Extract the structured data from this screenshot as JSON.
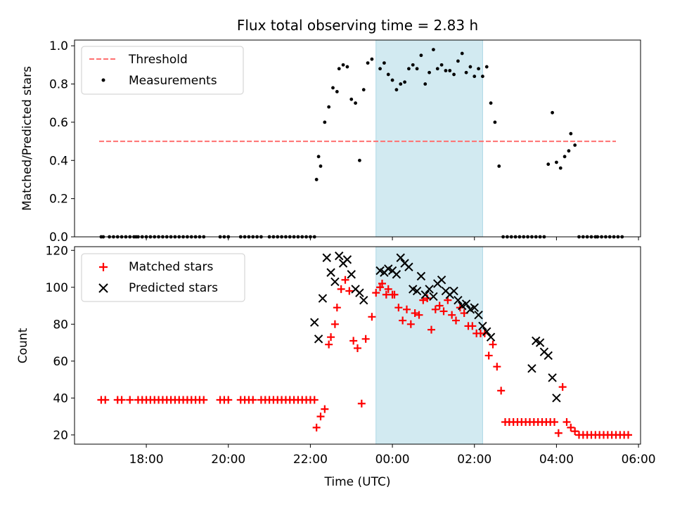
{
  "chart_data": [
    {
      "type": "scatter",
      "title": "Flux total observing time = 2.83 h",
      "xlabel": "",
      "ylabel": "Matched/Predicted stars",
      "x_unit": "hours (UTC, continuing past midnight)",
      "xlim": [
        16.25,
        30.05
      ],
      "ylim": [
        0.0,
        1.03
      ],
      "yticks": [
        "0.0",
        "0.2",
        "0.4",
        "0.6",
        "0.8",
        "1.0"
      ],
      "legend_position": "top-left",
      "highlight_band": {
        "x_start": 23.6,
        "x_end": 26.2,
        "color": "#add8e6"
      },
      "threshold": {
        "name": "Threshold",
        "y": 0.5,
        "x_start": 16.85,
        "x_end": 29.45,
        "color": "#ff7070"
      },
      "series": [
        {
          "name": "Measurements",
          "color": "#000000",
          "x": [
            16.9,
            16.95,
            17.1,
            17.2,
            17.3,
            17.4,
            17.5,
            17.6,
            17.7,
            17.75,
            17.8,
            17.9,
            18.0,
            18.1,
            18.2,
            18.3,
            18.4,
            18.5,
            18.6,
            18.7,
            18.8,
            18.9,
            19.0,
            19.1,
            19.2,
            19.3,
            19.4,
            19.8,
            19.9,
            20.0,
            20.3,
            20.4,
            20.5,
            20.6,
            20.7,
            20.8,
            21.0,
            21.1,
            21.2,
            21.3,
            21.4,
            21.5,
            21.6,
            21.7,
            21.8,
            21.9,
            22.0,
            22.1,
            22.15,
            22.2,
            22.25,
            22.35,
            22.45,
            22.55,
            22.65,
            22.7,
            22.8,
            22.9,
            23.0,
            23.1,
            23.2,
            23.3,
            23.4,
            23.5,
            23.7,
            23.8,
            23.9,
            24.0,
            24.1,
            24.2,
            24.3,
            24.4,
            24.5,
            24.6,
            24.7,
            24.8,
            24.9,
            25.0,
            25.1,
            25.2,
            25.3,
            25.4,
            25.5,
            25.6,
            25.7,
            25.8,
            25.9,
            26.0,
            26.1,
            26.2,
            26.3,
            26.4,
            26.5,
            26.6,
            26.7,
            26.8,
            26.9,
            27.0,
            27.1,
            27.2,
            27.3,
            27.4,
            27.5,
            27.6,
            27.7,
            27.8,
            27.9,
            28.0,
            28.1,
            28.2,
            28.3,
            28.35,
            28.45,
            28.55,
            28.65,
            28.75,
            28.85,
            28.95,
            29.0,
            29.1,
            29.2,
            29.3,
            29.4,
            29.5,
            29.6
          ],
          "y": [
            0.0,
            0.0,
            0.0,
            0.0,
            0.0,
            0.0,
            0.0,
            0.0,
            0.0,
            0.0,
            0.0,
            0.0,
            0.0,
            0.0,
            0.0,
            0.0,
            0.0,
            0.0,
            0.0,
            0.0,
            0.0,
            0.0,
            0.0,
            0.0,
            0.0,
            0.0,
            0.0,
            0.0,
            0.0,
            0.0,
            0.0,
            0.0,
            0.0,
            0.0,
            0.0,
            0.0,
            0.0,
            0.0,
            0.0,
            0.0,
            0.0,
            0.0,
            0.0,
            0.0,
            0.0,
            0.0,
            0.0,
            0.0,
            0.3,
            0.42,
            0.37,
            0.6,
            0.68,
            0.78,
            0.76,
            0.88,
            0.9,
            0.89,
            0.72,
            0.7,
            0.4,
            0.77,
            0.91,
            0.93,
            0.88,
            0.91,
            0.85,
            0.82,
            0.77,
            0.8,
            0.81,
            0.88,
            0.9,
            0.88,
            0.95,
            0.8,
            0.86,
            0.98,
            0.88,
            0.9,
            0.87,
            0.87,
            0.85,
            0.92,
            0.96,
            0.86,
            0.89,
            0.84,
            0.88,
            0.84,
            0.89,
            0.7,
            0.6,
            0.37,
            0.0,
            0.0,
            0.0,
            0.0,
            0.0,
            0.0,
            0.0,
            0.0,
            0.0,
            0.0,
            0.0,
            0.38,
            0.65,
            0.39,
            0.36,
            0.42,
            0.45,
            0.54,
            0.48,
            0.0,
            0.0,
            0.0,
            0.0,
            0.0,
            0.0,
            0.0,
            0.0,
            0.0,
            0.0,
            0.0,
            0.0
          ]
        }
      ]
    },
    {
      "type": "scatter",
      "title": "",
      "xlabel": "Time (UTC)",
      "ylabel": "Count",
      "x_unit": "hours (UTC, continuing past midnight)",
      "xlim": [
        16.25,
        30.05
      ],
      "ylim": [
        15.0,
        122.0
      ],
      "xticks": [
        {
          "x": 18,
          "label": "18:00"
        },
        {
          "x": 20,
          "label": "20:00"
        },
        {
          "x": 22,
          "label": "22:00"
        },
        {
          "x": 24,
          "label": "00:00"
        },
        {
          "x": 26,
          "label": "02:00"
        },
        {
          "x": 28,
          "label": "04:00"
        },
        {
          "x": 30,
          "label": "06:00"
        }
      ],
      "yticks": [
        "20",
        "40",
        "60",
        "80",
        "100",
        "120"
      ],
      "legend_position": "top-left",
      "highlight_band": {
        "x_start": 23.6,
        "x_end": 26.2,
        "color": "#add8e6"
      },
      "series": [
        {
          "name": "Matched stars",
          "color": "#ff0000",
          "marker": "+",
          "x": [
            16.9,
            17.0,
            17.3,
            17.4,
            17.6,
            17.8,
            17.9,
            18.0,
            18.1,
            18.2,
            18.3,
            18.4,
            18.5,
            18.6,
            18.7,
            18.8,
            18.9,
            19.0,
            19.1,
            19.2,
            19.3,
            19.4,
            19.8,
            19.9,
            20.0,
            20.3,
            20.4,
            20.5,
            20.6,
            20.8,
            20.9,
            21.0,
            21.1,
            21.2,
            21.3,
            21.4,
            21.5,
            21.6,
            21.7,
            21.8,
            21.9,
            22.0,
            22.1,
            22.15,
            22.25,
            22.35,
            22.45,
            22.5,
            22.6,
            22.65,
            22.75,
            22.85,
            22.95,
            23.05,
            23.15,
            23.25,
            23.35,
            23.5,
            23.6,
            23.7,
            23.75,
            23.85,
            23.9,
            24.0,
            24.05,
            24.15,
            24.25,
            24.35,
            24.45,
            24.55,
            24.65,
            24.75,
            24.85,
            24.95,
            25.05,
            25.15,
            25.25,
            25.35,
            25.45,
            25.55,
            25.65,
            25.75,
            25.85,
            25.95,
            26.05,
            26.15,
            26.25,
            26.35,
            26.45,
            26.55,
            26.65,
            26.75,
            26.85,
            26.95,
            27.05,
            27.15,
            27.25,
            27.35,
            27.45,
            27.55,
            27.65,
            27.75,
            27.85,
            27.95,
            28.05,
            28.15,
            28.25,
            28.35,
            28.45,
            28.55,
            28.65,
            28.75,
            28.85,
            28.95,
            29.05,
            29.15,
            29.25,
            29.35,
            29.45,
            29.55,
            29.65,
            29.75
          ],
          "y": [
            39,
            39,
            39,
            39,
            39,
            39,
            39,
            39,
            39,
            39,
            39,
            39,
            39,
            39,
            39,
            39,
            39,
            39,
            39,
            39,
            39,
            39,
            39,
            39,
            39,
            39,
            39,
            39,
            39,
            39,
            39,
            39,
            39,
            39,
            39,
            39,
            39,
            39,
            39,
            39,
            39,
            39,
            39,
            24,
            30,
            34,
            69,
            73,
            80,
            89,
            99,
            104,
            98,
            71,
            67,
            37,
            72,
            84,
            97,
            100,
            102,
            96,
            99,
            96,
            96,
            89,
            82,
            88,
            80,
            86,
            85,
            93,
            94,
            77,
            88,
            90,
            87,
            93,
            85,
            82,
            89,
            86,
            79,
            79,
            75,
            75,
            75,
            63,
            69,
            57,
            44,
            27,
            27,
            27,
            27,
            27,
            27,
            27,
            27,
            27,
            27,
            27,
            27,
            27,
            21,
            46,
            27,
            24,
            22,
            20,
            20,
            20,
            20,
            20,
            20,
            20,
            20,
            20,
            20,
            20,
            20,
            20
          ]
        },
        {
          "name": "Predicted stars",
          "color": "#000000",
          "marker": "x",
          "x": [
            22.1,
            22.2,
            22.3,
            22.4,
            22.5,
            22.6,
            22.7,
            22.8,
            22.9,
            23.0,
            23.1,
            23.2,
            23.3,
            23.7,
            23.8,
            23.9,
            24.0,
            24.1,
            24.2,
            24.3,
            24.4,
            24.5,
            24.6,
            24.7,
            24.8,
            24.9,
            25.0,
            25.1,
            25.2,
            25.3,
            25.4,
            25.5,
            25.6,
            25.7,
            25.8,
            25.9,
            26.0,
            26.1,
            26.2,
            26.3,
            26.4,
            27.4,
            27.5,
            27.6,
            27.7,
            27.8,
            27.9,
            28.0
          ],
          "y": [
            81,
            72,
            94,
            116,
            108,
            103,
            117,
            113,
            115,
            107,
            99,
            97,
            93,
            109,
            108,
            110,
            109,
            107,
            116,
            113,
            111,
            99,
            98,
            106,
            96,
            99,
            95,
            102,
            104,
            98,
            96,
            98,
            93,
            90,
            91,
            88,
            89,
            85,
            79,
            76,
            73,
            56,
            71,
            70,
            65,
            63,
            51,
            40
          ]
        }
      ]
    }
  ]
}
